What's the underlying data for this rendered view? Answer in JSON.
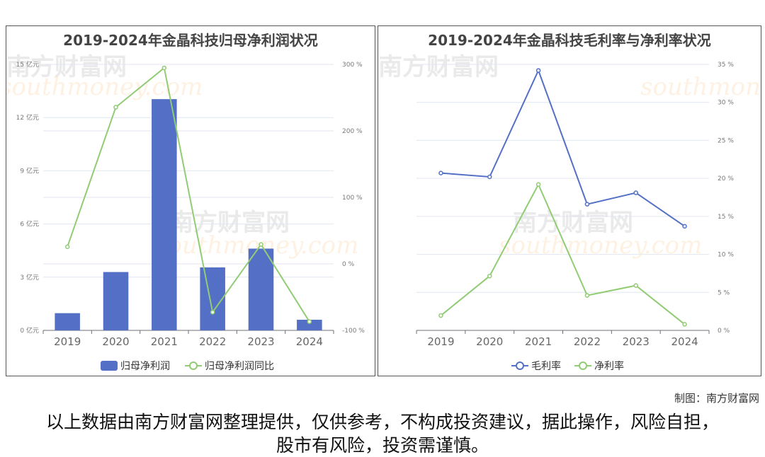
{
  "watermark": {
    "cn": "南方财富网",
    "en": "southmoney.com"
  },
  "chart_data": [
    {
      "type": "bar",
      "title": "2019-2024年金晶科技归母净利润状况",
      "categories": [
        "2019",
        "2020",
        "2021",
        "2022",
        "2023",
        "2024"
      ],
      "series": [
        {
          "name": "归母净利润",
          "type": "bar",
          "axis": "left",
          "values": [
            0.97,
            3.29,
            13.04,
            3.55,
            4.61,
            0.6
          ],
          "color": "#5470c6"
        },
        {
          "name": "归母净利润同比",
          "type": "line",
          "axis": "right",
          "values": [
            25.7,
            235.6,
            294.7,
            -72.7,
            29.2,
            -86.9
          ],
          "color": "#91cc75"
        }
      ],
      "y_left": {
        "ticks": [
          "0 亿元",
          "3 亿元",
          "6 亿元",
          "9 亿元",
          "12 亿元",
          "15 亿元"
        ],
        "ylim": [
          0,
          15
        ]
      },
      "y_right": {
        "ticks": [
          "-100 %",
          "0 %",
          "100 %",
          "200 %",
          "300 %"
        ],
        "ylim": [
          -100,
          300
        ]
      },
      "grid": true,
      "legend": "bottom"
    },
    {
      "type": "line",
      "title": "2019-2024年金晶科技毛利率与净利率状况",
      "categories": [
        "2019",
        "2020",
        "2021",
        "2022",
        "2023",
        "2024"
      ],
      "series": [
        {
          "name": "毛利率",
          "values": [
            20.7,
            20.2,
            34.2,
            16.6,
            18.1,
            13.7
          ],
          "color": "#5470c6"
        },
        {
          "name": "净利率",
          "values": [
            1.95,
            7.15,
            19.2,
            4.6,
            5.9,
            0.8
          ],
          "color": "#91cc75"
        }
      ],
      "y_right": {
        "ticks": [
          "0 %",
          "5 %",
          "10 %",
          "15 %",
          "20 %",
          "25 %",
          "30 %",
          "35 %"
        ],
        "ylim": [
          0,
          35
        ]
      },
      "grid": true,
      "legend": "bottom"
    }
  ],
  "footer": {
    "credit": "制图：南方财富网",
    "disclaimer": "以上数据由南方财富网整理提供，仅供参考，不构成投资建议，据此操作，风险自担，股市有风险，投资需谨慎。"
  }
}
